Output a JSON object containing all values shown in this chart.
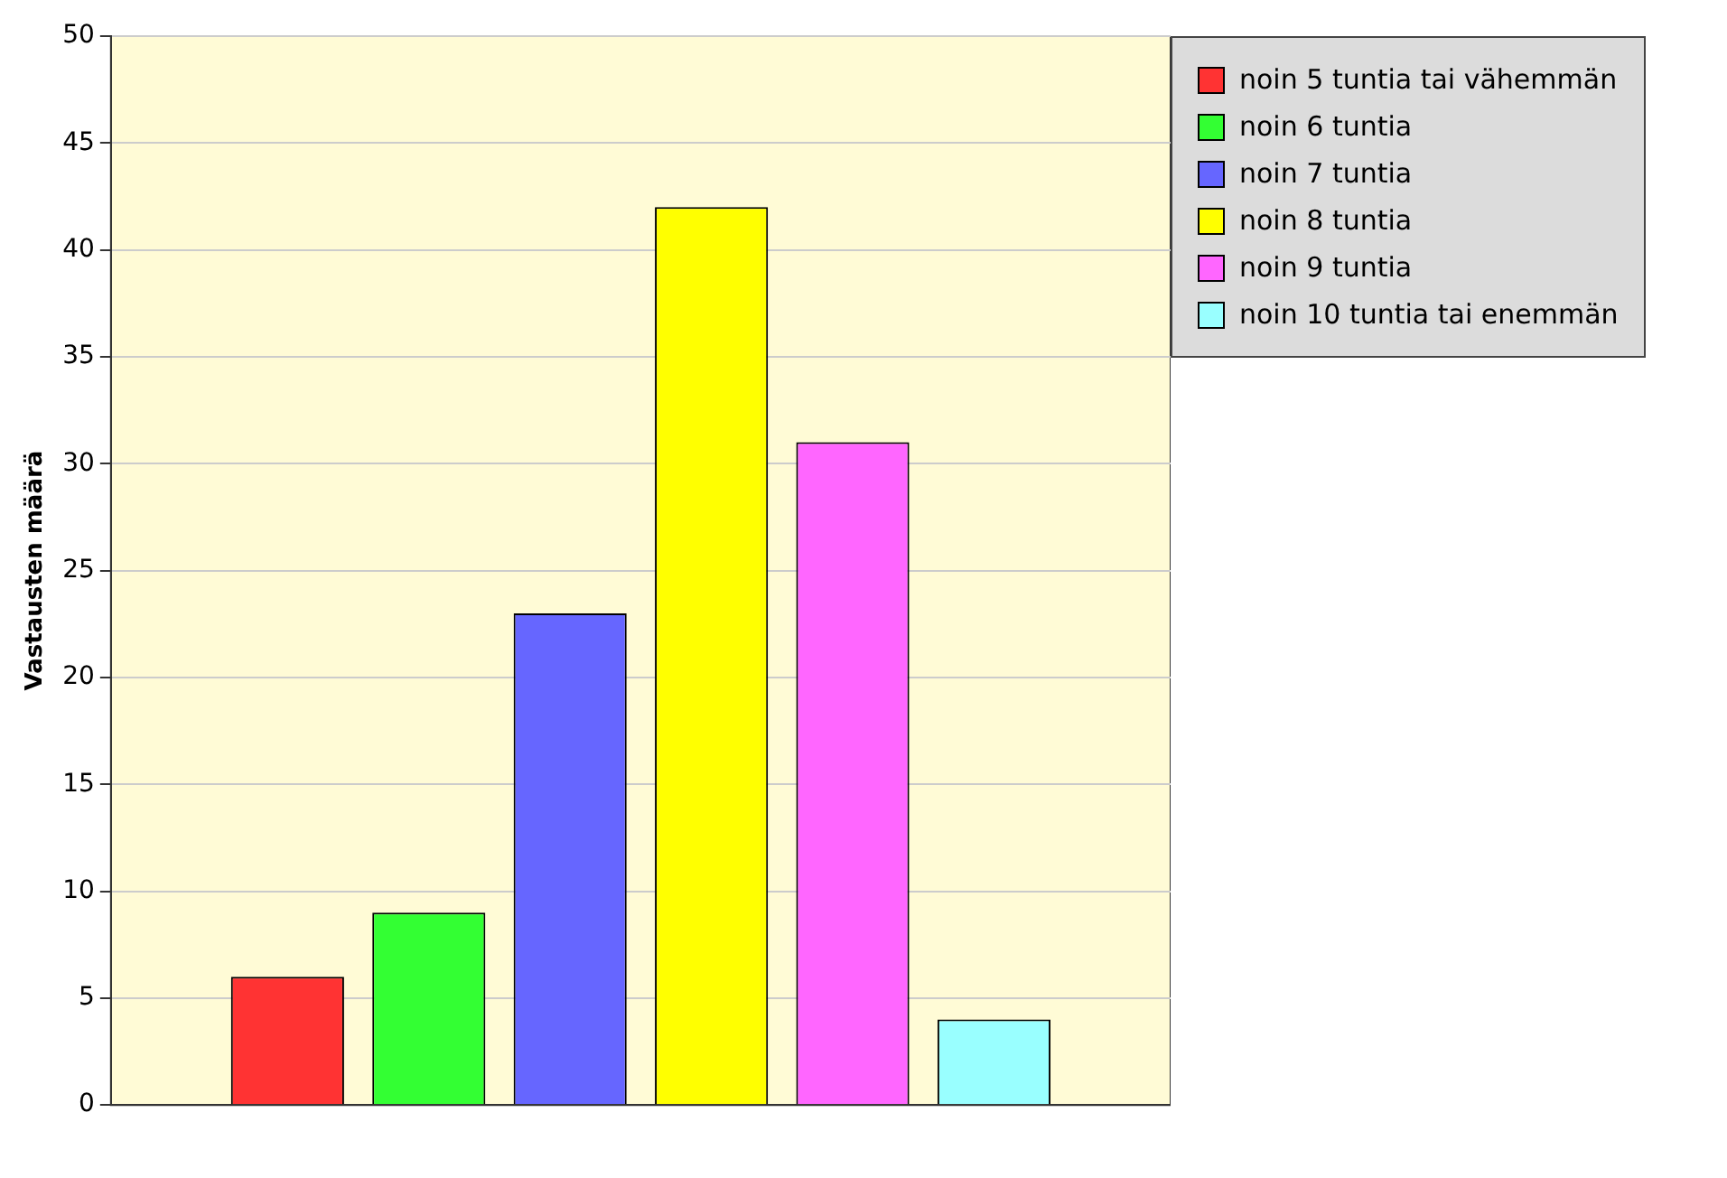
{
  "chart_data": {
    "type": "bar",
    "ylabel": "Vastausten määrä",
    "categories": [
      null
    ],
    "series": [
      {
        "name": "noin 5 tuntia tai vähemmän",
        "color": "#ff3333",
        "values": [
          6
        ]
      },
      {
        "name": "noin 6 tuntia",
        "color": "#33ff33",
        "values": [
          9
        ]
      },
      {
        "name": "noin 7 tuntia",
        "color": "#6666ff",
        "values": [
          23
        ]
      },
      {
        "name": "noin 8 tuntia",
        "color": "#ffff00",
        "values": [
          42
        ]
      },
      {
        "name": "noin 9 tuntia",
        "color": "#ff66ff",
        "values": [
          31
        ]
      },
      {
        "name": "noin 10 tuntia tai enemmän",
        "color": "#99ffff",
        "values": [
          4
        ]
      }
    ],
    "ylim": [
      0,
      50
    ],
    "yticks": [
      0,
      5,
      10,
      15,
      20,
      25,
      30,
      35,
      40,
      45,
      50
    ],
    "grid": "y",
    "legend": "top right"
  }
}
